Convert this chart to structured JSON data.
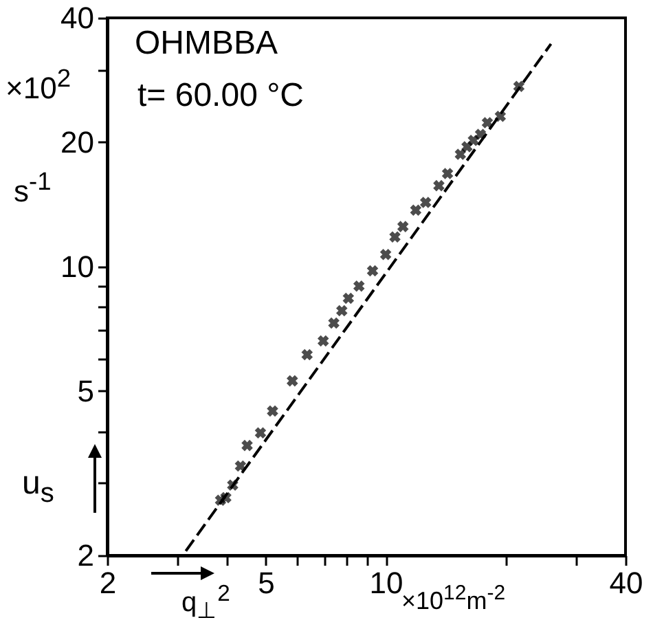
{
  "chart_data": {
    "type": "scatter",
    "xlabel": "q$_{⊥}$$^{2}$",
    "ylabel": "u$_{s}$",
    "annotations": [
      "OHMBBA",
      "t= 60.00 °C",
      "×10$^{2}$",
      "s$^{-1}$",
      "×10$^{12}$m$^{-2}$"
    ],
    "xlim": [
      2,
      40
    ],
    "ylim": [
      2,
      40
    ],
    "log": "xy",
    "grid": false,
    "xticks": [
      2,
      {
        "value": 3,
        "label": null
      },
      {
        "value": 4,
        "label": null
      },
      5,
      {
        "value": 6,
        "label": null
      },
      {
        "value": 7,
        "label": null
      },
      {
        "value": 8,
        "label": null
      },
      {
        "value": 9,
        "label": null
      },
      10,
      {
        "value": 20,
        "label": null
      },
      {
        "value": 30,
        "label": null
      },
      40
    ],
    "yticks": [
      2,
      {
        "value": 3,
        "label": null
      },
      {
        "value": 4,
        "label": null
      },
      5,
      {
        "value": 6,
        "label": null
      },
      {
        "value": 7,
        "label": null
      },
      {
        "value": 8,
        "label": null
      },
      {
        "value": 9,
        "label": null
      },
      10,
      20,
      {
        "value": 30,
        "label": null
      },
      40
    ],
    "series": [
      {
        "type": "scatter",
        "color": "#000000",
        "marker": "cross",
        "x": [
          3.85,
          3.97,
          4.13,
          4.32,
          4.49,
          4.85,
          5.2,
          5.83,
          6.35,
          6.97,
          7.41,
          7.76,
          8.06,
          8.57,
          9.27,
          10.0,
          10.55,
          11.05,
          11.9,
          12.6,
          13.6,
          14.3,
          15.4,
          16.0,
          16.6,
          17.3,
          18.0,
          19.4,
          21.6
        ],
        "values": [
          2.72,
          2.76,
          2.96,
          3.29,
          3.69,
          3.96,
          4.47,
          5.29,
          6.12,
          6.61,
          7.3,
          7.82,
          8.38,
          8.97,
          9.77,
          10.7,
          11.8,
          12.5,
          13.7,
          14.3,
          15.7,
          16.8,
          18.7,
          19.5,
          20.2,
          20.9,
          22.3,
          23.1,
          27.3
        ]
      },
      {
        "type": "line",
        "color": "#000000",
        "line_style": "dashed",
        "x": [
          3.15,
          26.0
        ],
        "values": [
          2.05,
          34.6
        ]
      }
    ]
  }
}
